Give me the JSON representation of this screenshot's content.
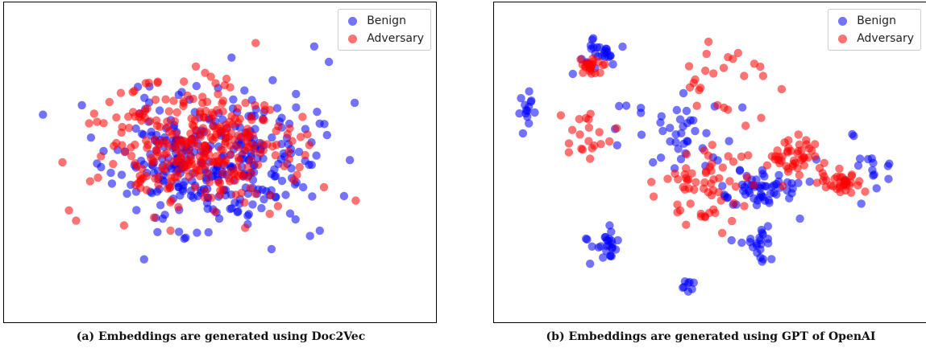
{
  "colors": {
    "benign": "#0000ff",
    "adversary": "#ff0000"
  },
  "chart_data": [
    {
      "type": "scatter",
      "caption": "(a) Embeddings are generated using Doc2Vec",
      "legend_placement": "upper-right",
      "legend": [
        "Benign",
        "Adversary"
      ],
      "axes_ticks": false,
      "xlim": [
        0,
        100
      ],
      "ylim": [
        0,
        100
      ],
      "clusters": [
        {
          "series": "Benign",
          "cx": 48,
          "cy": 50,
          "sx": 22,
          "sy": 21,
          "count": 330,
          "seed": 11
        },
        {
          "series": "Adversary",
          "cx": 44,
          "cy": 55,
          "sx": 21,
          "sy": 20,
          "count": 320,
          "seed": 23
        }
      ]
    },
    {
      "type": "scatter",
      "caption": "(b) Embeddings are generated using GPT of OpenAI",
      "legend_placement": "upper-right",
      "legend": [
        "Benign",
        "Adversary"
      ],
      "axes_ticks": false,
      "xlim": [
        0,
        100
      ],
      "ylim": [
        0,
        100
      ],
      "clusters": [
        {
          "series": "Benign",
          "cx": 23,
          "cy": 87,
          "sx": 5,
          "sy": 5,
          "count": 26,
          "seed": 31
        },
        {
          "series": "Benign",
          "cx": 5,
          "cy": 68,
          "sx": 2.5,
          "sy": 5,
          "count": 14,
          "seed": 32
        },
        {
          "series": "Benign",
          "cx": 24,
          "cy": 22,
          "sx": 4,
          "sy": 5,
          "count": 26,
          "seed": 33
        },
        {
          "series": "Benign",
          "cx": 62,
          "cy": 42,
          "sx": 10,
          "sy": 7,
          "count": 60,
          "seed": 34
        },
        {
          "series": "Benign",
          "cx": 62,
          "cy": 22,
          "sx": 4,
          "sy": 5,
          "count": 22,
          "seed": 35
        },
        {
          "series": "Benign",
          "cx": 42,
          "cy": 58,
          "sx": 14,
          "sy": 12,
          "count": 40,
          "seed": 36
        },
        {
          "series": "Benign",
          "cx": 90,
          "cy": 50,
          "sx": 6,
          "sy": 10,
          "count": 16,
          "seed": 37
        },
        {
          "series": "Benign",
          "cx": 45,
          "cy": 8,
          "sx": 3,
          "sy": 3,
          "count": 8,
          "seed": 38
        },
        {
          "series": "Adversary",
          "cx": 21,
          "cy": 83,
          "sx": 3,
          "sy": 3,
          "count": 24,
          "seed": 41
        },
        {
          "series": "Adversary",
          "cx": 70,
          "cy": 53,
          "sx": 6,
          "sy": 6,
          "count": 45,
          "seed": 42
        },
        {
          "series": "Adversary",
          "cx": 82,
          "cy": 43,
          "sx": 5,
          "sy": 4,
          "count": 35,
          "seed": 43
        },
        {
          "series": "Adversary",
          "cx": 48,
          "cy": 42,
          "sx": 12,
          "sy": 14,
          "count": 60,
          "seed": 44
        },
        {
          "series": "Adversary",
          "cx": 53,
          "cy": 78,
          "sx": 12,
          "sy": 10,
          "count": 25,
          "seed": 45
        },
        {
          "series": "Adversary",
          "cx": 20,
          "cy": 60,
          "sx": 6,
          "sy": 10,
          "count": 20,
          "seed": 46
        }
      ]
    }
  ]
}
